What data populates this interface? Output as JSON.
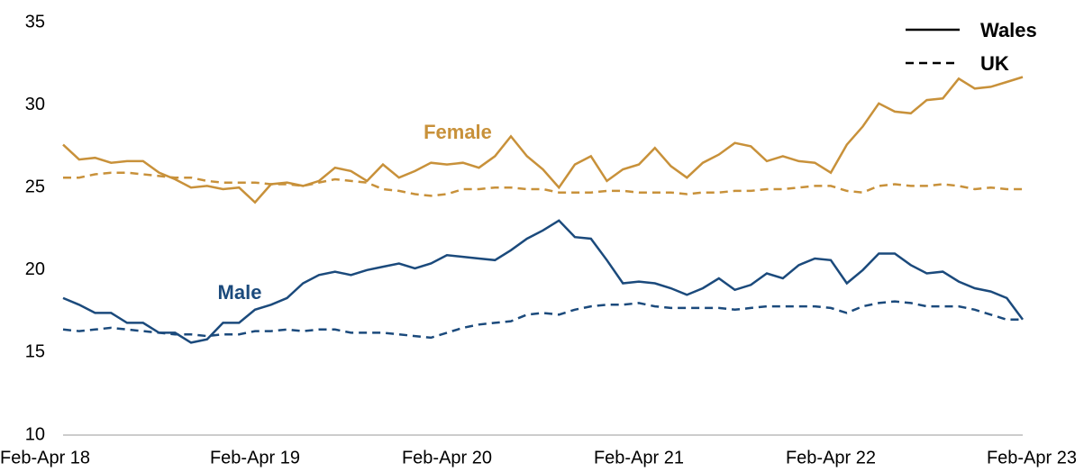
{
  "chart_data": {
    "type": "line",
    "categories": [
      "Feb-Apr 18",
      null,
      null,
      null,
      null,
      null,
      null,
      null,
      null,
      null,
      null,
      null,
      "Feb-Apr 19",
      null,
      null,
      null,
      null,
      null,
      null,
      null,
      null,
      null,
      null,
      null,
      "Feb-Apr 20",
      null,
      null,
      null,
      null,
      null,
      null,
      null,
      null,
      null,
      null,
      null,
      "Feb-Apr 21",
      null,
      null,
      null,
      null,
      null,
      null,
      null,
      null,
      null,
      null,
      null,
      "Feb-Apr 22",
      null,
      null,
      null,
      null,
      null,
      null,
      null,
      null,
      null,
      null,
      null,
      "Feb-Apr 23"
    ],
    "ylim": [
      10,
      35
    ],
    "yticks": [
      10,
      15,
      20,
      25,
      30,
      35
    ],
    "grid": false,
    "legend": [
      {
        "label": "Wales",
        "style": "solid"
      },
      {
        "label": "UK",
        "style": "dashed"
      }
    ],
    "annotations": [
      {
        "text": "Female",
        "color": "#c8913a"
      },
      {
        "text": "Male",
        "color": "#1b4a7c"
      }
    ],
    "series": [
      {
        "color": "#c8913a",
        "style": "solid",
        "values": [
          27.6,
          26.7,
          26.8,
          26.5,
          26.6,
          26.6,
          25.9,
          25.5,
          25.0,
          25.1,
          24.9,
          25.0,
          24.1,
          25.2,
          25.3,
          25.1,
          25.4,
          26.2,
          26.0,
          25.4,
          26.4,
          25.6,
          26.0,
          26.5,
          26.4,
          26.5,
          26.2,
          26.9,
          28.1,
          26.9,
          26.1,
          25.0,
          26.4,
          26.9,
          25.4,
          26.1,
          26.4,
          27.4,
          26.3,
          25.6,
          26.5,
          27.0,
          27.7,
          27.5,
          26.6,
          26.9,
          26.6,
          26.5,
          25.9,
          27.6,
          28.7,
          30.1,
          29.6,
          29.5,
          30.3,
          30.4,
          31.6,
          31.0,
          31.1,
          31.4,
          31.7
        ]
      },
      {
        "color": "#c8913a",
        "style": "dashed",
        "values": [
          25.6,
          25.6,
          25.8,
          25.9,
          25.9,
          25.8,
          25.7,
          25.6,
          25.6,
          25.4,
          25.3,
          25.3,
          25.3,
          25.2,
          25.2,
          25.1,
          25.3,
          25.5,
          25.4,
          25.3,
          24.9,
          24.8,
          24.6,
          24.5,
          24.6,
          24.9,
          24.9,
          25.0,
          25.0,
          24.9,
          24.9,
          24.7,
          24.7,
          24.7,
          24.8,
          24.8,
          24.7,
          24.7,
          24.7,
          24.6,
          24.7,
          24.7,
          24.8,
          24.8,
          24.9,
          24.9,
          25.0,
          25.1,
          25.1,
          24.8,
          24.7,
          25.1,
          25.2,
          25.1,
          25.1,
          25.2,
          25.1,
          24.9,
          25.0,
          24.9,
          24.9
        ]
      },
      {
        "color": "#1b4a7c",
        "style": "solid",
        "values": [
          18.3,
          17.9,
          17.4,
          17.4,
          16.8,
          16.8,
          16.2,
          16.2,
          15.6,
          15.8,
          16.8,
          16.8,
          17.6,
          17.9,
          18.3,
          19.2,
          19.7,
          19.9,
          19.7,
          20.0,
          20.2,
          20.4,
          20.1,
          20.4,
          20.9,
          20.8,
          20.7,
          20.6,
          21.2,
          21.9,
          22.4,
          23.0,
          22.0,
          21.9,
          20.6,
          19.2,
          19.3,
          19.2,
          18.9,
          18.5,
          18.9,
          19.5,
          18.8,
          19.1,
          19.8,
          19.5,
          20.3,
          20.7,
          20.6,
          19.2,
          20.0,
          21.0,
          21.0,
          20.3,
          19.8,
          19.9,
          19.3,
          18.9,
          18.7,
          18.3,
          17.0
        ]
      },
      {
        "color": "#1b4a7c",
        "style": "dashed",
        "values": [
          16.4,
          16.3,
          16.4,
          16.5,
          16.4,
          16.3,
          16.2,
          16.1,
          16.1,
          16.0,
          16.1,
          16.1,
          16.3,
          16.3,
          16.4,
          16.3,
          16.4,
          16.4,
          16.2,
          16.2,
          16.2,
          16.1,
          16.0,
          15.9,
          16.2,
          16.5,
          16.7,
          16.8,
          16.9,
          17.3,
          17.4,
          17.3,
          17.6,
          17.8,
          17.9,
          17.9,
          18.0,
          17.8,
          17.7,
          17.7,
          17.7,
          17.7,
          17.6,
          17.7,
          17.8,
          17.8,
          17.8,
          17.8,
          17.7,
          17.4,
          17.8,
          18.0,
          18.1,
          18.0,
          17.8,
          17.8,
          17.8,
          17.6,
          17.3,
          17.0,
          17.0
        ]
      }
    ]
  }
}
